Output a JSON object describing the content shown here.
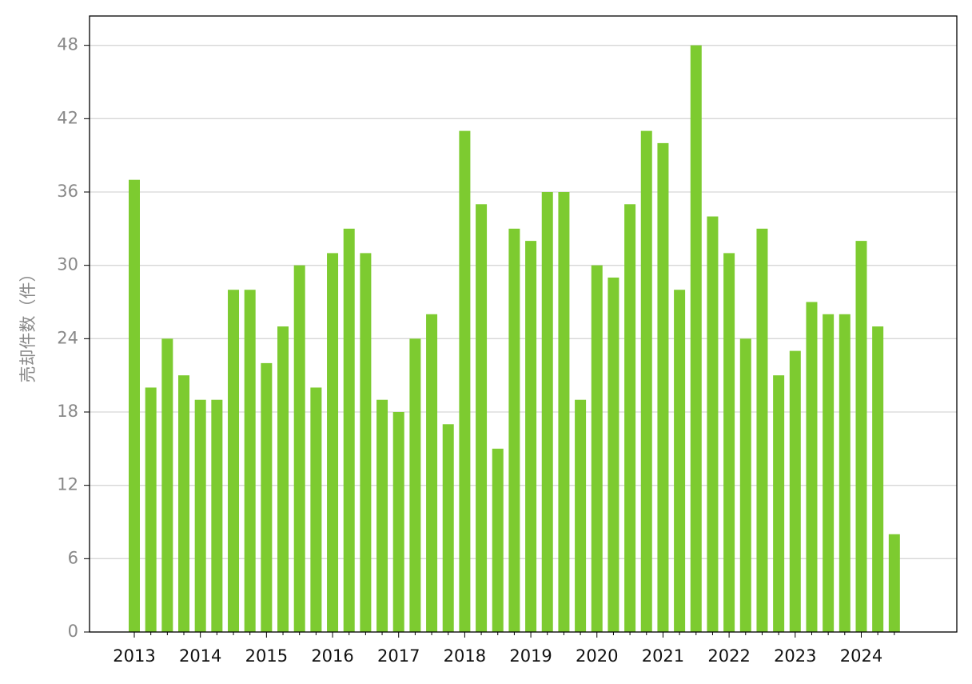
{
  "chart_data": {
    "type": "bar",
    "y_label": "売却件数（件）",
    "categories": [
      "2013",
      null,
      null,
      null,
      "2014",
      null,
      null,
      null,
      "2015",
      null,
      null,
      null,
      "2016",
      null,
      null,
      null,
      "2017",
      null,
      null,
      null,
      "2018",
      null,
      null,
      null,
      "2019",
      null,
      null,
      null,
      "2020",
      null,
      null,
      null,
      "2021",
      null,
      null,
      null,
      "2022",
      null,
      null,
      null,
      "2023",
      null,
      null,
      null,
      "2024",
      null,
      null
    ],
    "values": [
      37,
      20,
      24,
      21,
      19,
      19,
      28,
      28,
      22,
      25,
      30,
      20,
      31,
      33,
      31,
      19,
      18,
      24,
      26,
      17,
      41,
      35,
      15,
      33,
      32,
      36,
      36,
      19,
      30,
      29,
      35,
      41,
      40,
      28,
      48,
      34,
      31,
      24,
      33,
      21,
      23,
      27,
      26,
      26,
      32,
      25,
      8
    ],
    "color": "#7dcb30",
    "ylim": [
      0,
      50.4
    ],
    "yticks": [
      0,
      6,
      12,
      18,
      24,
      30,
      36,
      42,
      48
    ],
    "grid": true
  }
}
